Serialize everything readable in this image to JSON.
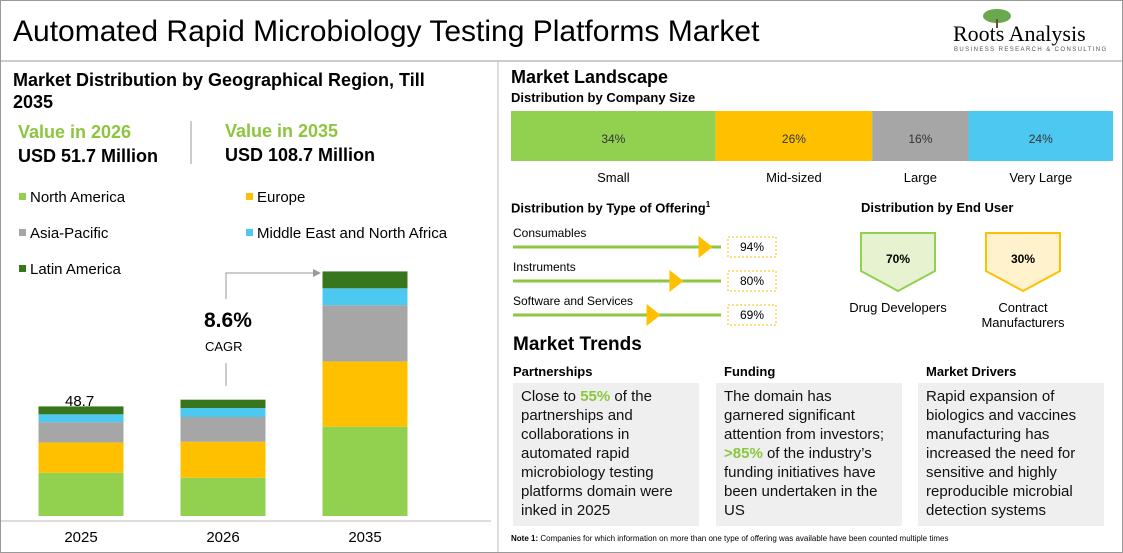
{
  "header": {
    "title": "Automated Rapid Microbiology Testing Platforms Market",
    "logo": "Roots Analysis",
    "logo_tagline": "BUSINESS RESEARCH & CONSULTING"
  },
  "geo": {
    "title": "Market Distribution by Geographical Region, Till 2035",
    "value_2026_label": "Value in 2026",
    "value_2026": "USD 51.7 Million",
    "value_2035_label": "Value in 2035",
    "value_2035": "USD 108.7 Million",
    "categories": [
      "2025",
      "2026",
      "2035"
    ],
    "series": [
      {
        "name": "North America",
        "color": "#92d050",
        "values": [
          19.2,
          17,
          39.7
        ]
      },
      {
        "name": "Europe",
        "color": "#ffc000",
        "values": [
          13.5,
          16,
          29
        ]
      },
      {
        "name": "Asia-Pacific",
        "color": "#a6a6a6",
        "values": [
          9,
          11,
          25
        ]
      },
      {
        "name": "Middle East and North Africa",
        "color": "#4dc8f0",
        "values": [
          3.5,
          4,
          7.5
        ]
      },
      {
        "name": "Latin America",
        "color": "#38761d",
        "values": [
          3.5,
          3.7,
          7.5
        ]
      }
    ],
    "total_label": 48.7,
    "cagr": "8.6%",
    "cagr_label": "CAGR"
  },
  "landscape": {
    "title": "Market Landscape",
    "company_size": {
      "title": "Distribution by Company Size",
      "categories": [
        "Small",
        "Mid-sized",
        "Large",
        "Very Large"
      ],
      "values": [
        34,
        26,
        16,
        24
      ],
      "value_labels": [
        "34%",
        "26%",
        "16%",
        "24%"
      ],
      "colors": [
        "#92d050",
        "#ffc000",
        "#a6a6a6",
        "#4dc8f0"
      ]
    },
    "offering": {
      "title": "Distribution by Type of Offering",
      "footnote_mark": "1",
      "categories": [
        "Consumables",
        "Instruments",
        "Software and Services"
      ],
      "values": [
        94,
        80,
        69
      ],
      "value_labels": [
        "94%",
        "80%",
        "69%"
      ]
    },
    "end_user": {
      "title": "Distribution by End User",
      "categories": [
        "Drug Developers",
        "Contract Manufacturers"
      ],
      "values": [
        70,
        30
      ],
      "value_labels": [
        "70%",
        "30%"
      ]
    }
  },
  "trends": {
    "title": "Market Trends",
    "items": [
      {
        "title": "Partnerships",
        "before": "Close to ",
        "highlight": "55%",
        "after": " of the partnerships and collaborations in automated rapid microbiology testing platforms domain were inked in 2025"
      },
      {
        "title": "Funding",
        "before": "The domain has garnered significant attention from investors; ",
        "highlight": ">85%",
        "after": " of the industry’s funding initiatives have been undertaken in the US"
      },
      {
        "title": "Market Drivers",
        "before": "Rapid expansion of biologics and vaccines manufacturing has increased the need for sensitive and highly reproducible microbial detection systems"
      }
    ]
  },
  "note": {
    "label": "Note 1:",
    "text": "Companies for which information on more than one type of offering was available have been counted multiple times"
  }
}
